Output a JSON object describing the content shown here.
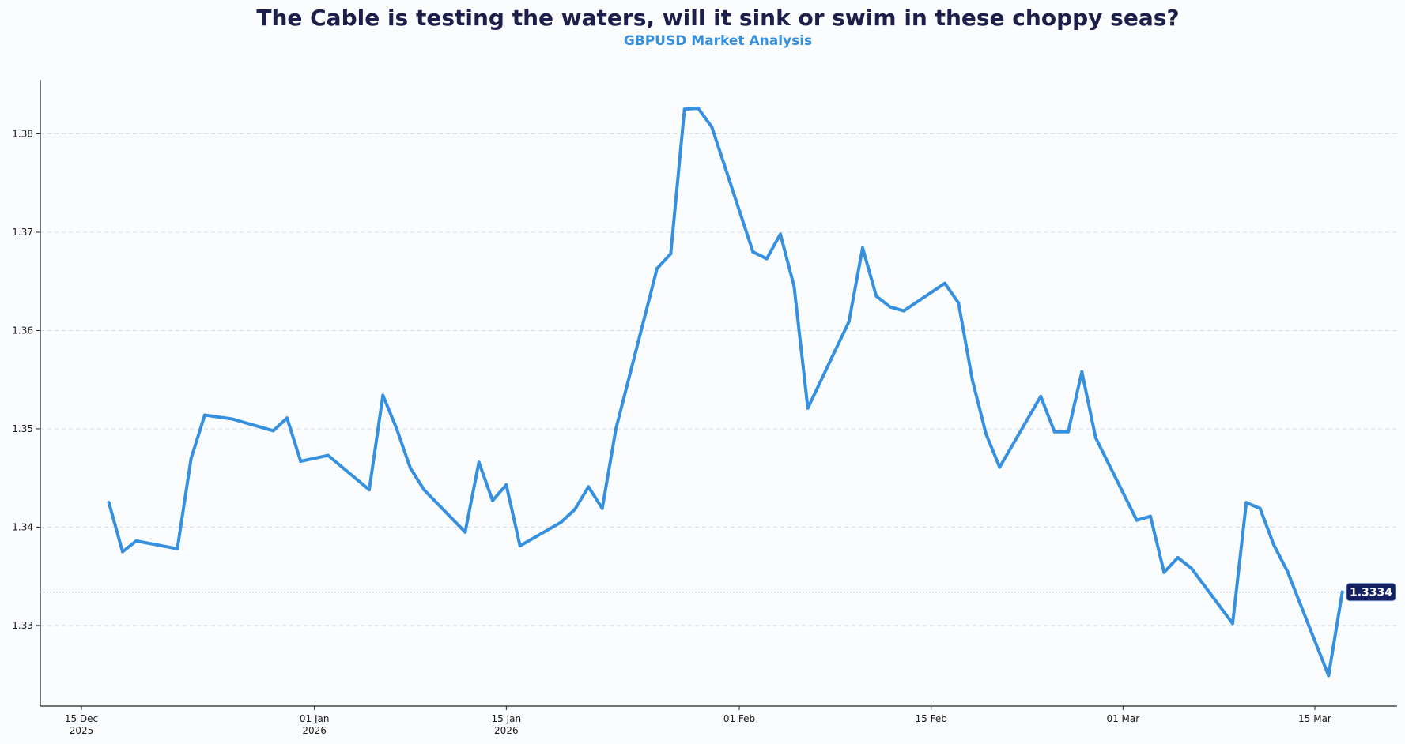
{
  "chart_data": {
    "type": "line",
    "title": "The Cable is testing the waters, will it sink or swim in these choppy seas?",
    "subtitle": "GBPUSD Market Analysis",
    "xlabel": "",
    "ylabel": "",
    "ylim": [
      1.3218,
      1.3855
    ],
    "grid": "horizontal-dashed",
    "x_range": [
      "2025-12-12",
      "2026-03-21"
    ],
    "y_ticks": [
      1.33,
      1.34,
      1.35,
      1.36,
      1.37,
      1.38
    ],
    "y_tick_labels": [
      "1.33",
      "1.34",
      "1.35",
      "1.36",
      "1.37",
      "1.38"
    ],
    "x_ticks": [
      {
        "date": "2025-12-15",
        "line1": "15 Dec",
        "line2": "2025"
      },
      {
        "date": "2026-01-01",
        "line1": "01 Jan",
        "line2": "2026"
      },
      {
        "date": "2026-01-15",
        "line1": "15 Jan",
        "line2": "2026"
      },
      {
        "date": "2026-02-01",
        "line1": "01 Feb",
        "line2": ""
      },
      {
        "date": "2026-02-15",
        "line1": "15 Feb",
        "line2": ""
      },
      {
        "date": "2026-03-01",
        "line1": "01 Mar",
        "line2": ""
      },
      {
        "date": "2026-03-15",
        "line1": "15 Mar",
        "line2": ""
      }
    ],
    "series": [
      {
        "name": "GBPUSD",
        "color": "#3590e0",
        "x": [
          "2025-12-17",
          "2025-12-18",
          "2025-12-19",
          "2025-12-22",
          "2025-12-23",
          "2025-12-24",
          "2025-12-26",
          "2025-12-29",
          "2025-12-30",
          "2025-12-31",
          "2026-01-02",
          "2026-01-05",
          "2026-01-06",
          "2026-01-07",
          "2026-01-08",
          "2026-01-09",
          "2026-01-12",
          "2026-01-13",
          "2026-01-14",
          "2026-01-15",
          "2026-01-16",
          "2026-01-19",
          "2026-01-20",
          "2026-01-21",
          "2026-01-22",
          "2026-01-23",
          "2026-01-26",
          "2026-01-27",
          "2026-01-28",
          "2026-01-29",
          "2026-01-30",
          "2026-02-02",
          "2026-02-03",
          "2026-02-04",
          "2026-02-05",
          "2026-02-06",
          "2026-02-09",
          "2026-02-10",
          "2026-02-11",
          "2026-02-12",
          "2026-02-13",
          "2026-02-16",
          "2026-02-17",
          "2026-02-18",
          "2026-02-19",
          "2026-02-20",
          "2026-02-23",
          "2026-02-24",
          "2026-02-25",
          "2026-02-26",
          "2026-02-27",
          "2026-03-02",
          "2026-03-03",
          "2026-03-04",
          "2026-03-05",
          "2026-03-06",
          "2026-03-09",
          "2026-03-10",
          "2026-03-11",
          "2026-03-12",
          "2026-03-13",
          "2026-03-16",
          "2026-03-17"
        ],
        "values": [
          1.3425,
          1.3375,
          1.3386,
          1.3378,
          1.347,
          1.3514,
          1.351,
          1.3498,
          1.3511,
          1.3467,
          1.3473,
          1.3438,
          1.3534,
          1.35,
          1.346,
          1.3438,
          1.3395,
          1.3466,
          1.3427,
          1.3443,
          1.3381,
          1.3405,
          1.3418,
          1.3441,
          1.3419,
          1.35,
          1.3663,
          1.3678,
          1.3825,
          1.3826,
          1.3807,
          1.368,
          1.3673,
          1.3698,
          1.3645,
          1.3521,
          1.3609,
          1.3684,
          1.3635,
          1.3624,
          1.362,
          1.3648,
          1.3628,
          1.355,
          1.3495,
          1.3461,
          1.3533,
          1.3497,
          1.3497,
          1.3558,
          1.3491,
          1.3407,
          1.3411,
          1.3354,
          1.3369,
          1.3358,
          1.3302,
          1.3425,
          1.3419,
          1.3382,
          1.3355,
          1.3249,
          1.3334
        ]
      }
    ],
    "last_value_label": "1.3334",
    "last_value": 1.3334
  },
  "colors": {
    "title": "#1c1f4a",
    "subtitle": "#3590e0",
    "line": "#3590e0",
    "badge_bg": "#152060",
    "badge_text": "#ffffff",
    "grid": "#d7dbe3",
    "axis": "#222222"
  }
}
